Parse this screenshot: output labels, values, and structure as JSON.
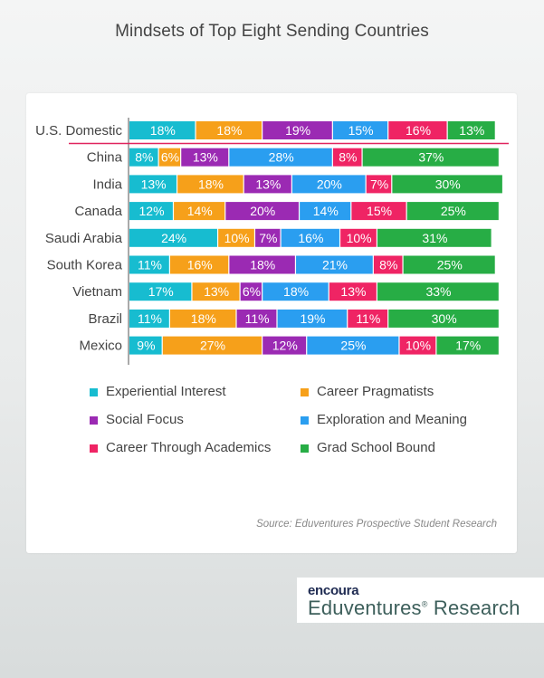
{
  "chart_data": {
    "type": "bar",
    "orientation": "horizontal",
    "stacked": true,
    "title": "Mindsets of Top Eight Sending Countries",
    "source": "Source: Eduventures Prospective Student Research",
    "categories": [
      "U.S. Domestic",
      "China",
      "India",
      "Canada",
      "Saudi Arabia",
      "South Korea",
      "Vietnam",
      "Brazil",
      "Mexico"
    ],
    "series": [
      {
        "name": "Experiential Interest",
        "color": "#17bcd0",
        "values": [
          18,
          8,
          13,
          12,
          24,
          11,
          17,
          11,
          9
        ]
      },
      {
        "name": "Career Pragmatists",
        "color": "#f6a01a",
        "values": [
          18,
          6,
          18,
          14,
          10,
          16,
          13,
          18,
          27
        ]
      },
      {
        "name": "Social Focus",
        "color": "#9b2ab3",
        "values": [
          19,
          13,
          13,
          20,
          7,
          18,
          6,
          11,
          12
        ]
      },
      {
        "name": "Exploration and Meaning",
        "color": "#2a9ef0",
        "values": [
          15,
          28,
          20,
          14,
          16,
          21,
          18,
          19,
          25
        ]
      },
      {
        "name": "Career Through Academics",
        "color": "#ef2464",
        "values": [
          16,
          8,
          7,
          15,
          10,
          8,
          13,
          11,
          10
        ]
      },
      {
        "name": "Grad School Bound",
        "color": "#27ad45",
        "values": [
          13,
          37,
          30,
          25,
          31,
          25,
          33,
          30,
          17
        ]
      }
    ],
    "value_suffix": "%",
    "xlim": [
      0,
      100
    ],
    "legend_position": "bottom",
    "grid": false
  },
  "logo": {
    "top_text": "encoura",
    "bottom_text": "Eduventures",
    "bottom_mark": "®",
    "bottom_suffix": " Research"
  }
}
